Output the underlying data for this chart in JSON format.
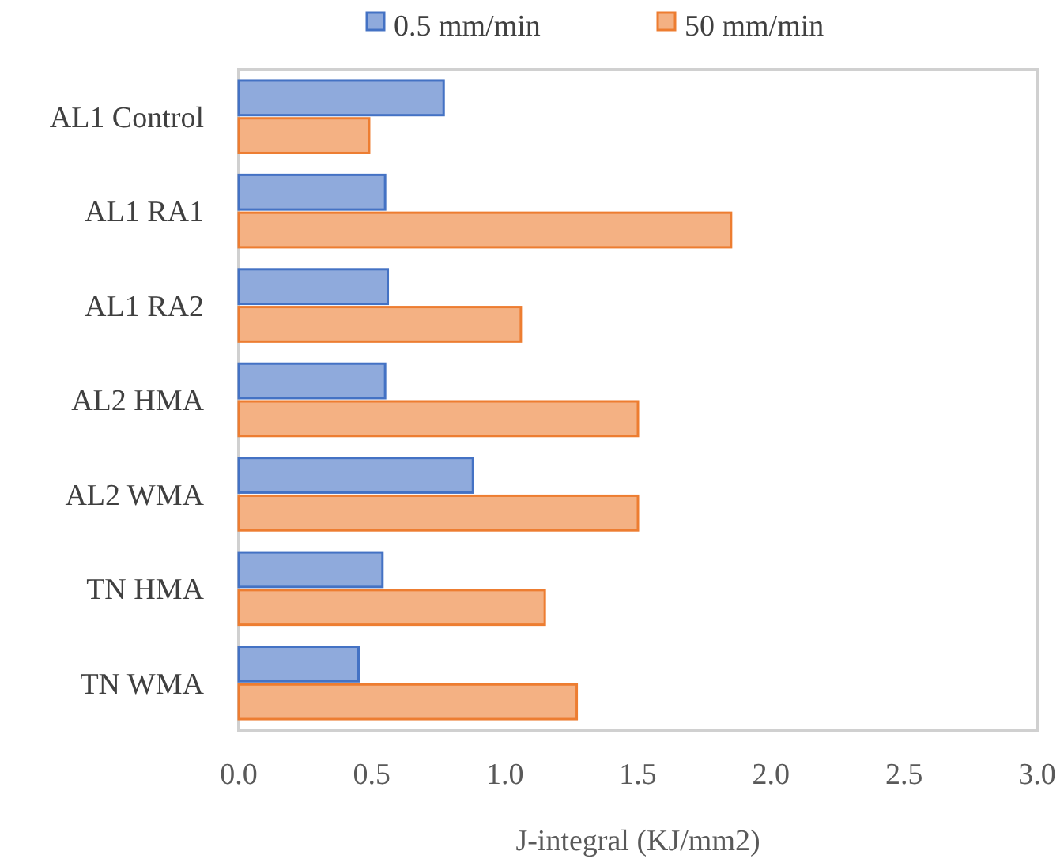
{
  "chart_data": {
    "type": "bar",
    "orientation": "horizontal",
    "xlabel": "J-integral (KJ/mm2)",
    "categories": [
      "AL1 Control",
      "AL1 RA1",
      "AL1 RA2",
      "AL2 HMA",
      "AL2 WMA",
      "TN HMA",
      "TN WMA"
    ],
    "series": [
      {
        "name": "0.5 mm/min",
        "color": "#4472c4",
        "values": [
          0.77,
          0.55,
          0.56,
          0.55,
          0.88,
          0.54,
          0.45
        ]
      },
      {
        "name": "50 mm/min",
        "color": "#ed7d31",
        "values": [
          0.49,
          1.85,
          1.06,
          1.5,
          1.5,
          1.15,
          1.27
        ]
      }
    ],
    "xlim": [
      0,
      3
    ],
    "xticks": [
      {
        "value": 0,
        "label": "0.0"
      },
      {
        "value": 0.5,
        "label": "0.5"
      },
      {
        "value": 1,
        "label": "1.0"
      },
      {
        "value": 1.5,
        "label": "1.5"
      },
      {
        "value": 2,
        "label": "2.0"
      },
      {
        "value": 2.5,
        "label": "2.5"
      },
      {
        "value": 3,
        "label": "3.0"
      }
    ],
    "grid": false,
    "legend": "top"
  }
}
